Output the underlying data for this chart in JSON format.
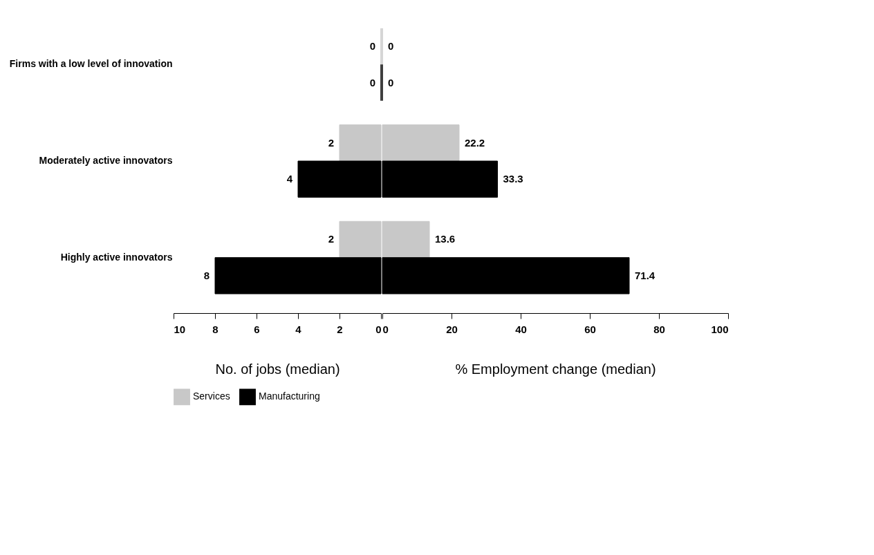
{
  "chart_data": [
    {
      "type": "bar",
      "orientation": "horizontal",
      "categories": [
        "Firms with a low level of innovation",
        "Moderately active innovators",
        "Highly active innovators"
      ],
      "xlabel": "No. of jobs (median)",
      "xlim": [
        10,
        0
      ],
      "xticks": [
        10,
        8,
        6,
        4,
        2,
        0
      ],
      "data_labels": true,
      "legend": "bottom",
      "series": [
        {
          "name": "Services",
          "color": "#c8c8c8",
          "values": [
            0,
            2,
            2
          ]
        },
        {
          "name": "Manufacturing",
          "color": "#000000",
          "values": [
            0,
            4,
            8
          ]
        }
      ]
    },
    {
      "type": "bar",
      "orientation": "horizontal",
      "categories": [
        null,
        null,
        null
      ],
      "xlabel": "% Employment change (median)",
      "xlim": [
        0,
        100
      ],
      "xticks": [
        0,
        20,
        40,
        60,
        80,
        100
      ],
      "data_labels": true,
      "tick_labels": "x",
      "legend": "bottom",
      "series": [
        {
          "name": "Services",
          "color": "#c8c8c8",
          "values": [
            0,
            22.2,
            13.6
          ]
        },
        {
          "name": "Manufacturing",
          "color": "#000000",
          "values": [
            0,
            33.3,
            71.4
          ]
        }
      ]
    }
  ]
}
